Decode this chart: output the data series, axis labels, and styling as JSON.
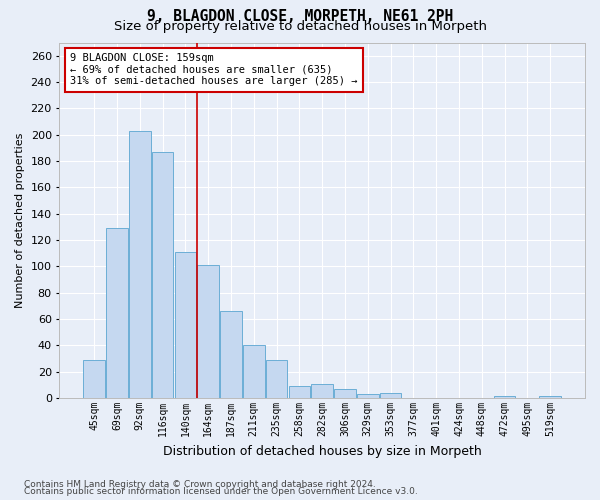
{
  "title": "9, BLAGDON CLOSE, MORPETH, NE61 2PH",
  "subtitle": "Size of property relative to detached houses in Morpeth",
  "xlabel": "Distribution of detached houses by size in Morpeth",
  "ylabel": "Number of detached properties",
  "categories": [
    "45sqm",
    "69sqm",
    "92sqm",
    "116sqm",
    "140sqm",
    "164sqm",
    "187sqm",
    "211sqm",
    "235sqm",
    "258sqm",
    "282sqm",
    "306sqm",
    "329sqm",
    "353sqm",
    "377sqm",
    "401sqm",
    "424sqm",
    "448sqm",
    "472sqm",
    "495sqm",
    "519sqm"
  ],
  "values": [
    29,
    129,
    203,
    187,
    111,
    101,
    66,
    40,
    29,
    9,
    11,
    7,
    3,
    4,
    0,
    0,
    0,
    0,
    2,
    0,
    2
  ],
  "bar_color": "#c5d8f0",
  "bar_edge_color": "#6baed6",
  "vline_x": 5.0,
  "vline_color": "#cc0000",
  "annotation_lines": [
    "9 BLAGDON CLOSE: 159sqm",
    "← 69% of detached houses are smaller (635)",
    "31% of semi-detached houses are larger (285) →"
  ],
  "footer1": "Contains HM Land Registry data © Crown copyright and database right 2024.",
  "footer2": "Contains public sector information licensed under the Open Government Licence v3.0.",
  "background_color": "#e8eef8",
  "plot_bg_color": "#e8eef8",
  "grid_color": "#ffffff",
  "ylim": [
    0,
    270
  ],
  "title_fontsize": 10.5,
  "subtitle_fontsize": 9.5,
  "ylabel_fontsize": 8,
  "xlabel_fontsize": 9,
  "tick_fontsize": 7,
  "footer_fontsize": 6.5
}
